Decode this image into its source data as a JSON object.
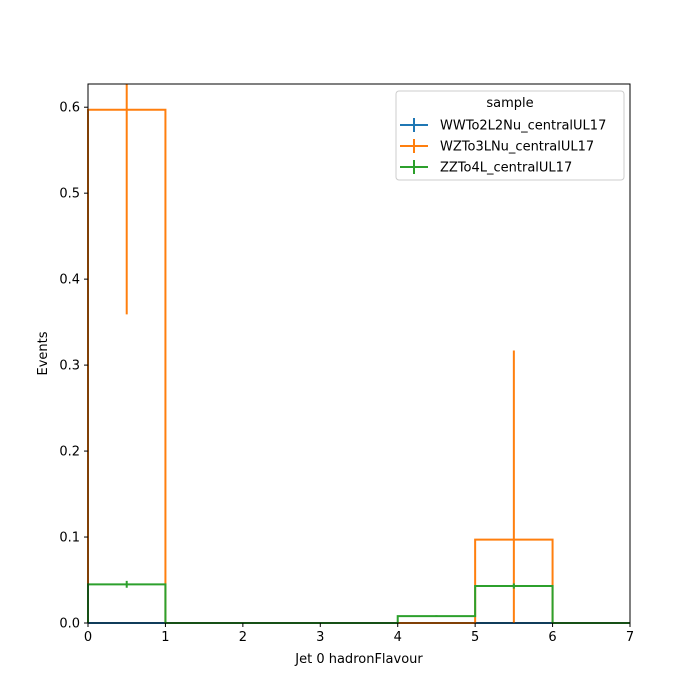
{
  "chart_data": {
    "type": "step-histogram",
    "xlabel": "Jet 0 hadronFlavour",
    "ylabel": "Events",
    "xlim": [
      0,
      7
    ],
    "ylim": [
      0,
      0.627
    ],
    "xticks": [
      0,
      1,
      2,
      3,
      4,
      5,
      6,
      7
    ],
    "yticks": [
      0.0,
      0.1,
      0.2,
      0.3,
      0.4,
      0.5,
      0.6
    ],
    "grid": false,
    "legend": {
      "title": "sample",
      "placement": "top-right"
    },
    "bin_edges": [
      0,
      1,
      2,
      3,
      4,
      5,
      6,
      7
    ],
    "series": [
      {
        "name": "WWTo2L2Nu_centralUL17",
        "color": "#1f77b4",
        "values": [
          0,
          0,
          0,
          0,
          0,
          0,
          0
        ],
        "errors": [
          0,
          0,
          0,
          0,
          0,
          0,
          0
        ]
      },
      {
        "name": "WZTo3LNu_centralUL17",
        "color": "#ff7f0e",
        "values": [
          0.597,
          0,
          0,
          0,
          0,
          0.097,
          0
        ],
        "errors": [
          0.238,
          0,
          0,
          0,
          0,
          0.22,
          0
        ]
      },
      {
        "name": "ZZTo4L_centralUL17",
        "color": "#2ca02c",
        "values": [
          0.045,
          0,
          0,
          0,
          0.008,
          0.043,
          0
        ],
        "errors": [
          0.004,
          0,
          0,
          0,
          0.001,
          0.003,
          0
        ]
      }
    ]
  }
}
